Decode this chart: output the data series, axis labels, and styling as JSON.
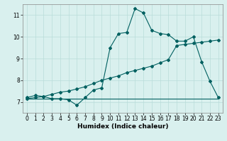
{
  "xlabel": "Humidex (Indice chaleur)",
  "bg_color": "#d9f0ee",
  "line_color": "#006060",
  "grid_color": "#b8ddd9",
  "xlim": [
    -0.5,
    23.5
  ],
  "ylim": [
    6.5,
    11.5
  ],
  "xticks": [
    0,
    1,
    2,
    3,
    4,
    5,
    6,
    7,
    8,
    9,
    10,
    11,
    12,
    13,
    14,
    15,
    16,
    17,
    18,
    19,
    20,
    21,
    22,
    23
  ],
  "yticks": [
    7,
    8,
    9,
    10,
    11
  ],
  "line1_x": [
    0,
    1,
    2,
    3,
    4,
    5,
    6,
    7,
    8,
    9,
    10,
    11,
    12,
    13,
    14,
    15,
    16,
    17,
    18,
    19,
    20,
    21,
    22,
    23
  ],
  "line1_y": [
    7.2,
    7.3,
    7.25,
    7.15,
    7.15,
    7.1,
    6.85,
    7.2,
    7.55,
    7.65,
    9.5,
    10.15,
    10.2,
    11.3,
    11.1,
    10.3,
    10.15,
    10.1,
    9.8,
    9.8,
    10.0,
    8.85,
    7.95,
    7.2
  ],
  "line2_x": [
    0,
    1,
    2,
    3,
    4,
    5,
    6,
    7,
    8,
    9,
    10,
    11,
    12,
    13,
    14,
    15,
    16,
    17,
    18,
    19,
    20,
    21,
    22,
    23
  ],
  "line2_y": [
    7.15,
    7.2,
    7.25,
    7.35,
    7.45,
    7.5,
    7.6,
    7.7,
    7.85,
    8.0,
    8.1,
    8.2,
    8.35,
    8.45,
    8.55,
    8.65,
    8.8,
    8.95,
    9.6,
    9.65,
    9.7,
    9.75,
    9.8,
    9.85
  ],
  "line3_x": [
    0,
    9,
    10,
    11,
    12,
    13,
    14,
    15,
    16,
    17,
    18,
    19,
    20,
    21,
    22,
    23
  ],
  "line3_y": [
    7.15,
    7.15,
    7.15,
    7.15,
    7.15,
    7.15,
    7.15,
    7.15,
    7.15,
    7.15,
    7.15,
    7.15,
    7.15,
    7.15,
    7.15,
    7.15
  ],
  "marker": "D",
  "markersize": 2.0,
  "linewidth": 0.8,
  "tick_fontsize": 5.5,
  "xlabel_fontsize": 6.5
}
